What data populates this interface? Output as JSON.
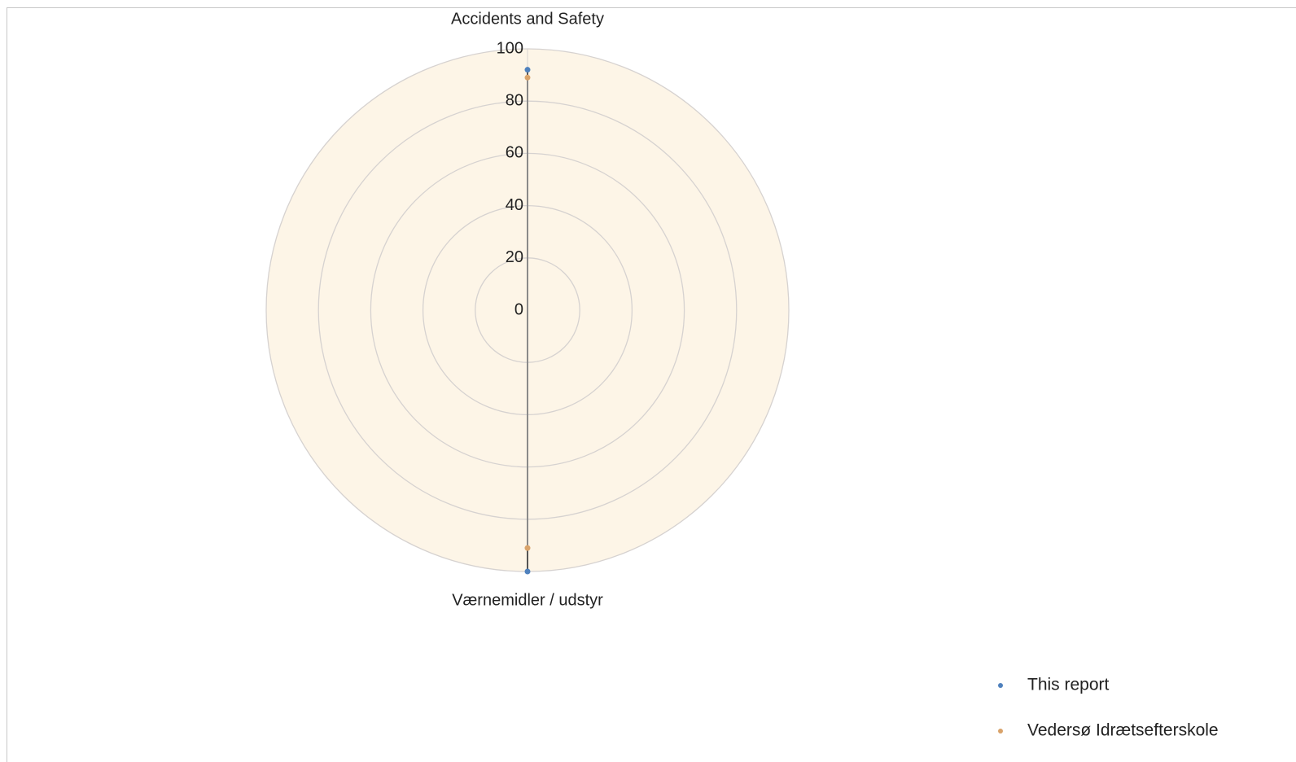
{
  "chart_data": {
    "type": "radar",
    "categories": [
      "Accidents and Safety",
      "Værnemidler / udstyr"
    ],
    "series": [
      {
        "name": "This report",
        "color": "#4f81bd",
        "values": [
          92,
          100
        ]
      },
      {
        "name": "Vedersø Idrætsefterskole",
        "color": "#d9a36a",
        "values": [
          89,
          91
        ]
      }
    ],
    "rlim": [
      0,
      100
    ],
    "rticks": [
      0,
      20,
      40,
      60,
      80,
      100
    ],
    "grid": true,
    "legend": "lower right"
  }
}
